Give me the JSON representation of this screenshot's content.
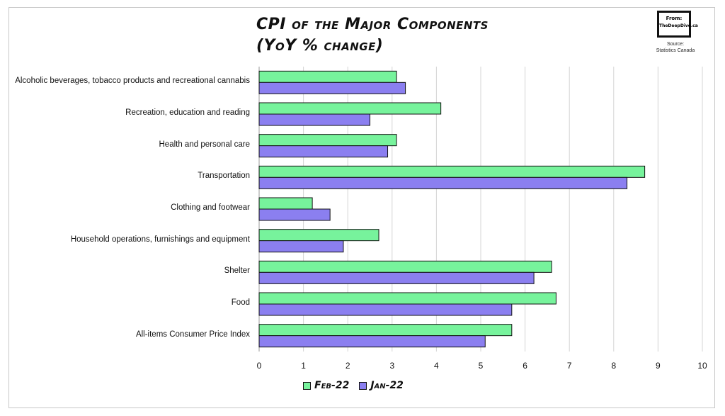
{
  "header": {
    "title_line1": "CPI of the Major Components",
    "title_line2": "(YoY % change)",
    "logo_line1": "From:",
    "logo_line2": "TheDeepDive.ca",
    "source_line1": "Source:",
    "source_line2": "Statistics Canada"
  },
  "colors": {
    "feb": "#77f39c",
    "jan": "#8b7ff0",
    "grid": "#d4d4d4",
    "bar_stroke": "#111111"
  },
  "chart_data": {
    "type": "bar",
    "orientation": "horizontal",
    "title": "CPI of the Major Components (YoY % change)",
    "categories": [
      "Alcoholic beverages, tobacco products and recreational cannabis",
      "Recreation, education and reading",
      "Health and personal care",
      "Transportation",
      "Clothing and footwear",
      "Household operations, furnishings and equipment",
      "Shelter",
      "Food",
      "All-items Consumer Price Index"
    ],
    "series": [
      {
        "name": "Feb-22",
        "values": [
          3.1,
          4.1,
          3.1,
          8.7,
          1.2,
          2.7,
          6.6,
          6.7,
          5.7
        ]
      },
      {
        "name": "Jan-22",
        "values": [
          3.3,
          2.5,
          2.9,
          8.3,
          1.6,
          1.9,
          6.2,
          5.7,
          5.1
        ]
      }
    ],
    "xlim": [
      0,
      10
    ],
    "xticks": [
      "0",
      "1",
      "2",
      "3",
      "4",
      "5",
      "6",
      "7",
      "8",
      "9",
      "10"
    ],
    "grid": true,
    "legend": "bottom-center"
  }
}
